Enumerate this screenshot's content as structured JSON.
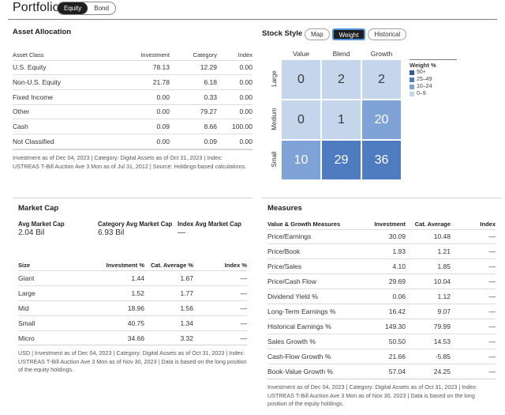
{
  "header": {
    "title": "Portfolio",
    "tabs": [
      {
        "label": "Equity",
        "active": true
      },
      {
        "label": "Bond",
        "active": false
      }
    ]
  },
  "asset_allocation": {
    "title": "Asset Allocation",
    "columns": [
      "Asset Class",
      "Investment",
      "Category",
      "Index"
    ],
    "rows": [
      {
        "name": "U.S. Equity",
        "investment": "78.13",
        "category": "12.29",
        "index": "0.00"
      },
      {
        "name": "Non-U.S. Equity",
        "investment": "21.78",
        "category": "6.18",
        "index": "0.00"
      },
      {
        "name": "Fixed Income",
        "investment": "0.00",
        "category": "0.33",
        "index": "0.00"
      },
      {
        "name": "Other",
        "investment": "0.00",
        "category": "79.27",
        "index": "0.00"
      },
      {
        "name": "Cash",
        "investment": "0.09",
        "category": "8.66",
        "index": "100.00"
      },
      {
        "name": "Not Classified",
        "investment": "0.00",
        "category": "0.09",
        "index": "0.00"
      }
    ],
    "note": "Investment as of Dec 04, 2023 | Category: Digital Assets as of Oct 31, 2023 | Index: USTREAS T-Bill Auction Ave 3 Mon as of Jul 31, 2012 | Source: Holdings-based calculations."
  },
  "stock_style": {
    "title": "Stock Style",
    "tabs": [
      {
        "label": "Map",
        "active": false
      },
      {
        "label": "Weight",
        "active": true
      },
      {
        "label": "Historical",
        "active": false
      }
    ],
    "columns": [
      "Value",
      "Blend",
      "Growth"
    ],
    "rows": [
      "Large",
      "Medium",
      "Small"
    ],
    "values": [
      [
        0,
        2,
        2
      ],
      [
        0,
        1,
        20
      ],
      [
        10,
        29,
        36
      ]
    ],
    "legend": {
      "title": "Weight %",
      "items": [
        {
          "label": "50+",
          "color": "#2c5b9e"
        },
        {
          "label": "25–49",
          "color": "#4f7cc0"
        },
        {
          "label": "10–24",
          "color": "#7fa3d6"
        },
        {
          "label": "0–9",
          "color": "#c5d6ec"
        }
      ]
    }
  },
  "market_cap": {
    "title": "Market Cap",
    "summary": [
      {
        "label": "Avg Market Cap",
        "value": "2.04 Bil"
      },
      {
        "label": "Category Avg Market Cap",
        "value": "6.93 Bil"
      },
      {
        "label": "Index Avg Market Cap",
        "value": "—"
      }
    ],
    "columns": [
      "Size",
      "Investment %",
      "Cat. Average %",
      "Index %"
    ],
    "rows": [
      {
        "name": "Giant",
        "investment": "1.44",
        "category": "1.67",
        "index": "—"
      },
      {
        "name": "Large",
        "investment": "1.52",
        "category": "1.77",
        "index": "—"
      },
      {
        "name": "Mid",
        "investment": "18.96",
        "category": "1.56",
        "index": "—"
      },
      {
        "name": "Small",
        "investment": "40.75",
        "category": "1.34",
        "index": "—"
      },
      {
        "name": "Micro",
        "investment": "34.66",
        "category": "3.32",
        "index": "—"
      }
    ],
    "note": "USD | Investment as of Dec 04, 2023 | Category: Digital Assets as of Oct 31, 2023 | Index: USTREAS T-Bill Auction Ave 3 Mon as of Nov 30, 2023 | Data is based on the long position of the equity holdings."
  },
  "measures": {
    "title": "Measures",
    "columns": [
      "Value & Growth Measures",
      "Investment",
      "Cat. Average",
      "Index"
    ],
    "rows": [
      {
        "name": "Price/Earnings",
        "investment": "30.09",
        "category": "10.48",
        "index": "—"
      },
      {
        "name": "Price/Book",
        "investment": "1.93",
        "category": "1.21",
        "index": "—"
      },
      {
        "name": "Price/Sales",
        "investment": "4.10",
        "category": "1.85",
        "index": "—"
      },
      {
        "name": "Price/Cash Flow",
        "investment": "29.69",
        "category": "10.04",
        "index": "—"
      },
      {
        "name": "Dividend Yield %",
        "investment": "0.06",
        "category": "1.12",
        "index": "—"
      },
      {
        "name": "Long-Term Earnings %",
        "investment": "16.42",
        "category": "9.07",
        "index": "—"
      },
      {
        "name": "Historical Earnings %",
        "investment": "149.30",
        "category": "79.99",
        "index": "—"
      },
      {
        "name": "Sales Growth %",
        "investment": "50.50",
        "category": "14.53",
        "index": "—"
      },
      {
        "name": "Cash-Flow Growth %",
        "investment": "21.66",
        "category": "-5.85",
        "index": "—"
      },
      {
        "name": "Book-Value Growth %",
        "investment": "57.04",
        "category": "24.25",
        "index": "—"
      }
    ],
    "note": "Investment as of Dec 04, 2023 | Category: Digital Assets as of Oct 31, 2023 | Index: USTREAS T-Bill Auction Ave 3 Mon as of Nov 30, 2023 | Data is based on the long position of the equity holdings."
  }
}
